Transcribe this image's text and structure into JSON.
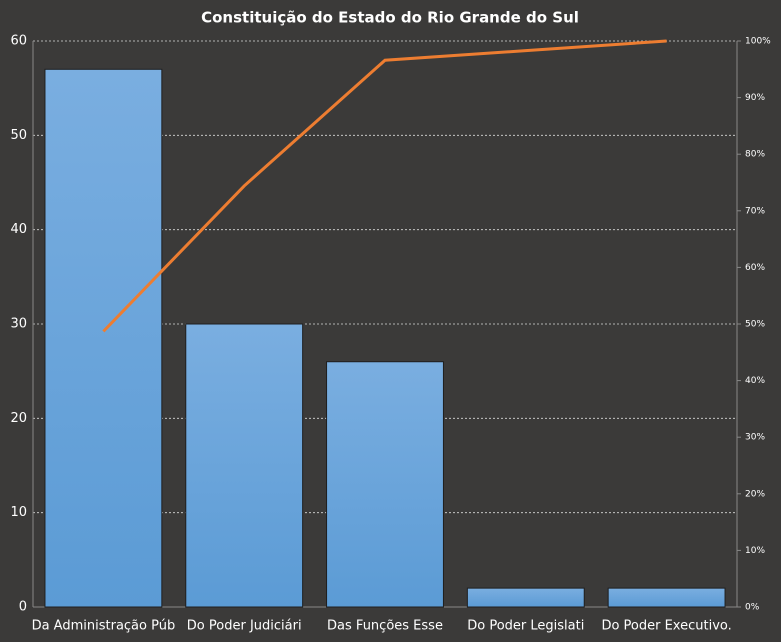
{
  "chart_data": {
    "type": "pareto",
    "title": "Constituição do Estado do Rio Grande do Sul",
    "categories": [
      "Da Administração Púb",
      "Do Poder Judiciári",
      "Das Funções Esse",
      "Do Poder Legislati",
      "Do Poder Executivo."
    ],
    "series": [
      {
        "values": [
          57,
          30,
          26,
          2,
          2
        ],
        "color": "#5b9bd5"
      },
      {
        "values": [
          48.7,
          74.4,
          96.6,
          98.3,
          100
        ],
        "color": "#ed7d31",
        "axis": "y2"
      }
    ],
    "ylim": [
      0,
      60
    ],
    "yticks": [
      0,
      10,
      20,
      30,
      40,
      50,
      60
    ],
    "y2lim": [
      0,
      100
    ],
    "y2ticks": [
      {
        "value": 0,
        "label": "0%"
      },
      {
        "value": 10,
        "label": "10%"
      },
      {
        "value": 20,
        "label": "20%"
      },
      {
        "value": 30,
        "label": "30%"
      },
      {
        "value": 40,
        "label": "40%"
      },
      {
        "value": 50,
        "label": "50%"
      },
      {
        "value": 60,
        "label": "60%"
      },
      {
        "value": 70,
        "label": "70%"
      },
      {
        "value": 80,
        "label": "80%"
      },
      {
        "value": 90,
        "label": "90%"
      },
      {
        "value": 100,
        "label": "100%"
      }
    ],
    "grid": true
  }
}
